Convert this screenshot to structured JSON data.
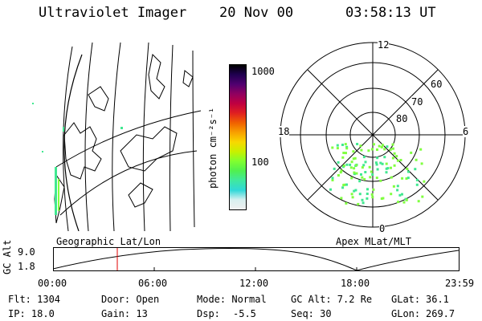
{
  "header": {
    "instrument": "Ultraviolet Imager",
    "date": "20 Nov 00",
    "time": "03:58:13 UT"
  },
  "geo_panel": {
    "label": "Geographic Lat/Lon"
  },
  "polar_panel": {
    "label": "Apex MLat/MLT",
    "mlt_labels": [
      "12",
      "18",
      "6",
      "0"
    ],
    "lat_labels": [
      "60",
      "70",
      "80"
    ]
  },
  "colorbar": {
    "unit_label": "photon cm⁻²s⁻¹",
    "tick_labels": [
      "1000",
      "100"
    ],
    "colors": [
      "#f0f0f0",
      "#d8f0f0",
      "#30d8d8",
      "#40e8a0",
      "#50f050",
      "#80ff30",
      "#c8f000",
      "#f8d800",
      "#f8a000",
      "#f06000",
      "#e02020",
      "#c00040",
      "#900060",
      "#500070",
      "#200050",
      "#000000"
    ]
  },
  "altitude_plot": {
    "ylabel": "GC Alt",
    "y_ticks": [
      "9.0",
      "1.8"
    ],
    "x_ticks": [
      "00:00",
      "06:00",
      "12:00",
      "18:00",
      "23:59"
    ],
    "cursor_color": "#e00000"
  },
  "footer": {
    "flt": "Flt: 1304",
    "ip": "IP: 18.0",
    "door": "Door: Open",
    "gain": "Gain: 13",
    "mode": "Mode: Normal",
    "dsp": "Dsp:",
    "dsp_value": "-5.5",
    "gcalt": "GC Alt: 7.2 Re",
    "seq": "Seq: 30",
    "glat": "GLat:",
    "glat_value": "36.1",
    "glon": "GLon:",
    "glon_value": "269.7"
  }
}
